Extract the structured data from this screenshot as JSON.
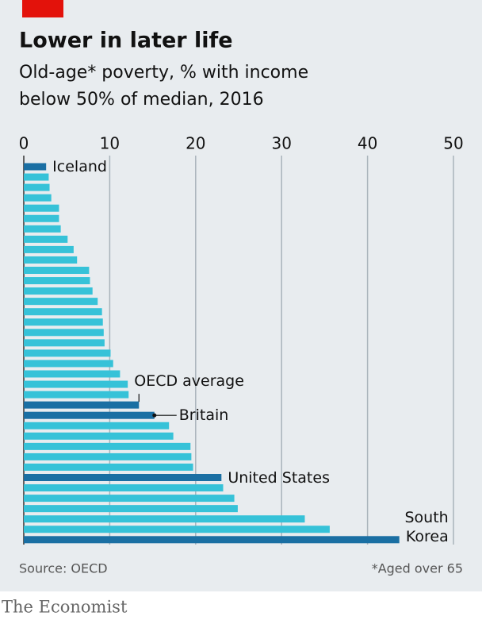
{
  "chart_data": {
    "type": "barh",
    "title": "Lower in later life",
    "subtitle": [
      "Old-age* poverty, % with income",
      "below 50% of median, 2016"
    ],
    "categories": [
      "Iceland",
      null,
      null,
      null,
      null,
      null,
      null,
      null,
      null,
      null,
      null,
      null,
      null,
      null,
      null,
      null,
      null,
      null,
      null,
      null,
      null,
      null,
      null,
      "OECD average",
      "Britain",
      null,
      null,
      null,
      null,
      null,
      "United States",
      null,
      null,
      null,
      null,
      null,
      "South Korea"
    ],
    "values": [
      2.6,
      2.9,
      3.0,
      3.2,
      4.1,
      4.1,
      4.3,
      5.1,
      5.8,
      6.2,
      7.6,
      7.7,
      8.0,
      8.6,
      9.1,
      9.2,
      9.3,
      9.4,
      10.1,
      10.4,
      11.2,
      12.1,
      12.2,
      13.4,
      15.2,
      16.9,
      17.4,
      19.4,
      19.5,
      19.7,
      23.0,
      23.2,
      24.5,
      24.9,
      32.7,
      35.6,
      43.7
    ],
    "colors": [
      "#1a6fa3",
      "#36c2d8",
      "#36c2d8",
      "#36c2d8",
      "#36c2d8",
      "#36c2d8",
      "#36c2d8",
      "#36c2d8",
      "#36c2d8",
      "#36c2d8",
      "#36c2d8",
      "#36c2d8",
      "#36c2d8",
      "#36c2d8",
      "#36c2d8",
      "#36c2d8",
      "#36c2d8",
      "#36c2d8",
      "#36c2d8",
      "#36c2d8",
      "#36c2d8",
      "#36c2d8",
      "#36c2d8",
      "#1a6fa3",
      "#1a6fa3",
      "#36c2d8",
      "#36c2d8",
      "#36c2d8",
      "#36c2d8",
      "#36c2d8",
      "#1a6fa3",
      "#36c2d8",
      "#36c2d8",
      "#36c2d8",
      "#36c2d8",
      "#36c2d8",
      "#1a6fa3"
    ],
    "xlim": [
      0,
      50
    ],
    "xticks": [
      0,
      10,
      20,
      30,
      40,
      50
    ],
    "grid": true,
    "source": "Source: OECD",
    "note": "*Aged over 65",
    "brand": "The Economist"
  }
}
